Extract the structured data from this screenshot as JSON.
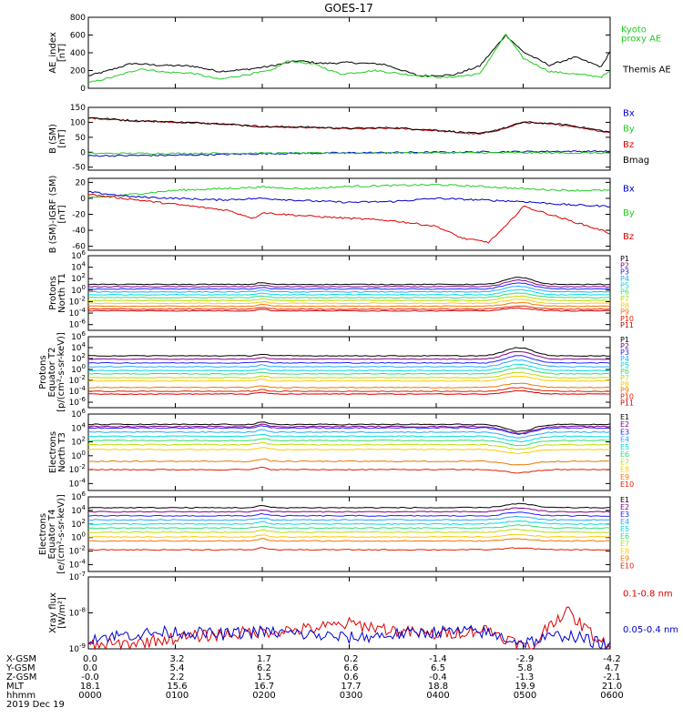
{
  "title": "GOES-17",
  "colors": {
    "black": "#000000",
    "green": "#22cc22",
    "blue": "#0000cc",
    "red": "#dd0000",
    "P": [
      "#000000",
      "#880088",
      "#2222ff",
      "#22aaff",
      "#00dddd",
      "#33dd77",
      "#bbdd00",
      "#ffcc00",
      "#ee7700",
      "#dd2200",
      "#cc0000"
    ]
  },
  "footer": {
    "rows": [
      {
        "label": "X-GSM",
        "values": [
          "0.0",
          "3.2",
          "1.7",
          "0.2",
          "-1.4",
          "-2.9",
          "-4.2"
        ]
      },
      {
        "label": "Y-GSM",
        "values": [
          "0.0",
          "5.4",
          "6.2",
          "6.6",
          "6.5",
          "5.8",
          "4.7"
        ]
      },
      {
        "label": "Z-GSM",
        "values": [
          "-0.0",
          "2.2",
          "1.5",
          "0.6",
          "-0.4",
          "-1.3",
          "-2.1"
        ]
      },
      {
        "label": "MLT",
        "values": [
          "18.1",
          "15.6",
          "16.7",
          "17.7",
          "18.8",
          "19.9",
          "21.0"
        ]
      },
      {
        "label": "hhmm",
        "values": [
          "0000",
          "0100",
          "0200",
          "0300",
          "0400",
          "0500",
          "0600"
        ]
      }
    ],
    "date": "2019 Dec 19"
  },
  "chart_data": [
    {
      "type": "line",
      "ylabel": [
        "AE_index",
        "[nT]"
      ],
      "ylim": [
        0,
        800
      ],
      "yticks": [
        "800",
        "600",
        "400",
        "200",
        "0"
      ],
      "legend": [
        {
          "name": "Kyoto proxy AE",
          "color": "green"
        },
        {
          "name": "Themis AE",
          "color": "black"
        }
      ],
      "series": [
        {
          "name": "Themis AE",
          "color": "black",
          "x": [
            0,
            0.2,
            0.5,
            0.8,
            1.2,
            1.5,
            1.8,
            2.1,
            2.4,
            2.7,
            3.0,
            3.4,
            3.8,
            4.2,
            4.5,
            4.8,
            5.0,
            5.3,
            5.6,
            5.9,
            6.0
          ],
          "y": [
            140,
            190,
            280,
            260,
            250,
            190,
            210,
            250,
            310,
            280,
            290,
            270,
            140,
            150,
            250,
            600,
            410,
            260,
            350,
            240,
            420
          ]
        },
        {
          "name": "Kyoto proxy AE",
          "color": "green",
          "x": [
            0,
            0.3,
            0.6,
            0.9,
            1.2,
            1.5,
            1.8,
            2.1,
            2.3,
            2.6,
            2.9,
            3.3,
            3.7,
            4.1,
            4.5,
            4.8,
            5.0,
            5.3,
            5.6,
            5.9,
            6.0
          ],
          "y": [
            60,
            130,
            220,
            180,
            170,
            100,
            150,
            200,
            310,
            270,
            160,
            200,
            150,
            120,
            160,
            610,
            340,
            190,
            160,
            130,
            190
          ]
        }
      ]
    },
    {
      "type": "line",
      "ylabel": [
        "B (SM)",
        "[nT]"
      ],
      "ylim": [
        -60,
        150
      ],
      "yticks": [
        "150",
        "100",
        "50",
        "0",
        "-50"
      ],
      "legend": [
        {
          "name": "Bx",
          "color": "blue"
        },
        {
          "name": "By",
          "color": "green"
        },
        {
          "name": "Bz",
          "color": "red"
        },
        {
          "name": "Bmag",
          "color": "black"
        }
      ],
      "series": [
        {
          "name": "Bz",
          "color": "red",
          "x": [
            0,
            0.5,
            1.0,
            1.5,
            2.0,
            2.5,
            3.0,
            3.5,
            4.0,
            4.5,
            4.8,
            5.0,
            5.5,
            5.8,
            6.0
          ],
          "y": [
            115,
            105,
            100,
            95,
            85,
            83,
            78,
            80,
            72,
            60,
            80,
            100,
            90,
            75,
            65
          ]
        },
        {
          "name": "Bmag",
          "color": "black",
          "x": [
            0,
            0.5,
            1.0,
            1.5,
            2.0,
            2.5,
            3.0,
            3.5,
            4.0,
            4.5,
            4.8,
            5.0,
            5.5,
            5.8,
            6.0
          ],
          "y": [
            116,
            106,
            101,
            96,
            86,
            84,
            80,
            82,
            74,
            62,
            82,
            101,
            92,
            77,
            67
          ]
        },
        {
          "name": "Bx",
          "color": "blue",
          "x": [
            0,
            1,
            2,
            3,
            4,
            5,
            5.5,
            6.0
          ],
          "y": [
            -12,
            -10,
            -5,
            -2,
            0,
            2,
            3,
            3
          ]
        },
        {
          "name": "By",
          "color": "green",
          "x": [
            0,
            1,
            2,
            3,
            4,
            5,
            6.0
          ],
          "y": [
            -4,
            -4,
            -3,
            -3,
            -2,
            -2,
            -3
          ]
        }
      ]
    },
    {
      "type": "line",
      "ylabel": [
        "B (SM)-IGRF (SM)",
        "[nT]"
      ],
      "ylim": [
        -65,
        25
      ],
      "yticks": [
        "20",
        "0",
        "-20",
        "-40",
        "-60"
      ],
      "legend": [
        {
          "name": "Bx",
          "color": "blue"
        },
        {
          "name": "By",
          "color": "green"
        },
        {
          "name": "Bz",
          "color": "red"
        }
      ],
      "series": [
        {
          "name": "By",
          "color": "green",
          "x": [
            0,
            0.5,
            1.0,
            1.5,
            2.0,
            2.5,
            3.0,
            3.5,
            4.0,
            4.5,
            5.0,
            5.5,
            6.0
          ],
          "y": [
            0,
            5,
            10,
            12,
            14,
            12,
            15,
            16,
            17,
            15,
            12,
            10,
            10
          ]
        },
        {
          "name": "Bx",
          "color": "blue",
          "x": [
            0,
            0.5,
            1.0,
            1.5,
            2.0,
            2.5,
            3.0,
            3.5,
            4.0,
            4.5,
            5.0,
            5.5,
            6.0
          ],
          "y": [
            8,
            2,
            0,
            -2,
            0,
            -3,
            -5,
            -4,
            0,
            -2,
            -4,
            -8,
            -10
          ]
        },
        {
          "name": "Bz",
          "color": "red",
          "x": [
            0,
            0.4,
            0.8,
            1.2,
            1.6,
            1.9,
            2.0,
            2.5,
            3.0,
            3.5,
            4.0,
            4.3,
            4.6,
            4.8,
            5.0,
            5.3,
            5.6,
            5.9,
            6.0
          ],
          "y": [
            5,
            0,
            -5,
            -10,
            -15,
            -25,
            -18,
            -22,
            -25,
            -28,
            -35,
            -50,
            -55,
            -35,
            -10,
            -20,
            -30,
            -40,
            -44
          ]
        }
      ]
    },
    {
      "type": "line",
      "ylabel": [
        "Protons",
        "North T1"
      ],
      "ylog": true,
      "ylim": [
        1e-07,
        1000000.0
      ],
      "yticks": [
        "10^6",
        "10^4",
        "10^2",
        "10^0",
        "10^-2",
        "10^-4",
        "10^-6"
      ],
      "legend": [
        "P1",
        "P2",
        "P3",
        "P4",
        "P5",
        "P6",
        "P7",
        "P8",
        "P9",
        "P10",
        "P11"
      ],
      "levels": [
        1.0,
        0.6,
        0.2,
        -0.3,
        -0.8,
        -1.3,
        -1.8,
        -2.3,
        -2.8,
        -3.3,
        -3.6
      ],
      "bump": 1.2
    },
    {
      "type": "line",
      "ylabel": [
        "Protons",
        "Equator T2",
        "[p/(cm²-s-sr-keV)]"
      ],
      "ylog": true,
      "ylim": [
        1e-07,
        1000000.0
      ],
      "yticks": [
        "10^6",
        "10^4",
        "10^2",
        "10^0",
        "10^-2",
        "10^-4",
        "10^-6"
      ],
      "legend": [
        "P1",
        "P2",
        "P3",
        "P4",
        "P5",
        "P6",
        "P7",
        "P8",
        "P9",
        "P10",
        "P11"
      ],
      "levels": [
        2.5,
        1.9,
        1.2,
        0.5,
        -0.2,
        -0.8,
        -1.5,
        -2.1,
        -3.3,
        -4.0,
        -4.5
      ],
      "bump": 1.5
    },
    {
      "type": "line",
      "ylabel": [
        "Electrons",
        "North T3"
      ],
      "ylog": true,
      "ylim": [
        1e-05,
        1000000.0
      ],
      "yticks": [
        "10^6",
        "10^4",
        "10^2",
        "10^0",
        "10^-2",
        "10^-4"
      ],
      "legend": [
        "E1",
        "E2",
        "E3",
        "E4",
        "E5",
        "E6",
        "E7",
        "E8",
        "E9",
        "E10"
      ],
      "levels": [
        4.5,
        4.2,
        4.0,
        3.4,
        2.8,
        2.2,
        1.6,
        0.9,
        -0.8,
        -2.0
      ],
      "bump": -1.0
    },
    {
      "type": "line",
      "ylabel": [
        "Electrons",
        "Equator T4",
        "[e/(cm²-s-sr-keV)]"
      ],
      "ylog": true,
      "ylim": [
        1e-05,
        1000000.0
      ],
      "yticks": [
        "10^6",
        "10^4",
        "10^2",
        "10^0",
        "10^-2",
        "10^-4"
      ],
      "legend": [
        "E1",
        "E2",
        "E3",
        "E4",
        "E5",
        "E6",
        "E7",
        "E8",
        "E9",
        "E10"
      ],
      "levels": [
        4.4,
        3.8,
        3.2,
        2.6,
        2.0,
        1.4,
        0.8,
        0.1,
        -0.5,
        -1.8
      ],
      "bump": 0.6
    },
    {
      "type": "line",
      "ylabel": [
        "Xray flux",
        "[W/m²]"
      ],
      "ylog": true,
      "ylim": [
        1e-09,
        1e-07
      ],
      "yticks": [
        "10^-7",
        "10^-8",
        "10^-9"
      ],
      "legend": [
        {
          "name": "0.1-0.8 nm",
          "color": "red"
        },
        {
          "name": "0.05-0.4 nm",
          "color": "blue"
        }
      ],
      "series": [
        {
          "name": "0.1-0.8 nm",
          "color": "red",
          "x": [
            0,
            0.5,
            1.0,
            1.5,
            2.0,
            2.5,
            3.0,
            3.3,
            3.6,
            4.0,
            4.3,
            4.6,
            4.9,
            5.1,
            5.3,
            5.5,
            5.7,
            6.0
          ],
          "y": [
            1.2e-09,
            1.4e-09,
            2e-09,
            2.5e-09,
            3e-09,
            3.5e-09,
            5e-09,
            4e-09,
            3e-09,
            2.5e-09,
            3e-09,
            3.5e-09,
            1.5e-09,
            1e-09,
            5e-09,
            1.1e-08,
            4e-09,
            1e-09
          ]
        },
        {
          "name": "0.05-0.4 nm",
          "color": "blue",
          "x": [
            0,
            0.5,
            1.0,
            1.5,
            2.0,
            2.5,
            3.0,
            3.5,
            4.0,
            4.5,
            5.0,
            5.5,
            6.0
          ],
          "y": [
            2e-09,
            2.5e-09,
            3e-09,
            2.5e-09,
            3e-09,
            2.5e-09,
            2e-09,
            2.5e-09,
            3e-09,
            3e-09,
            1.5e-09,
            2.5e-09,
            1.2e-09
          ]
        }
      ]
    }
  ]
}
